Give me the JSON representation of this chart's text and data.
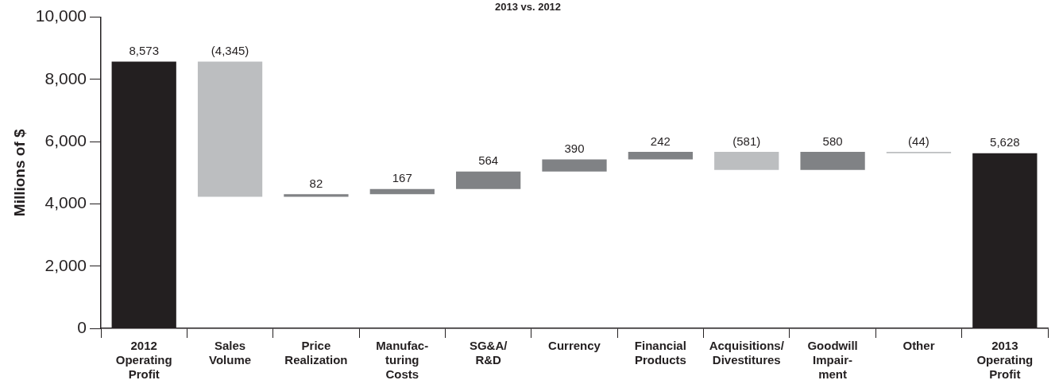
{
  "chart_data": {
    "type": "bar",
    "title": "2013 vs. 2012",
    "ylabel": "Millions of $",
    "categories": [
      "2012\nOperating\nProfit",
      "Sales\nVolume",
      "Price\nRealization",
      "Manufac-\nturing\nCosts",
      "SG&A/\nR&D",
      "Currency",
      "Financial\nProducts",
      "Acquisitions/\nDivestitures",
      "Goodwill\nImpair-\nment",
      "Other",
      "2013\nOperating\nProfit"
    ],
    "values": [
      8573,
      -4345,
      82,
      167,
      564,
      390,
      242,
      -581,
      580,
      -44,
      5628
    ],
    "base": [
      0,
      8573,
      4228,
      4310,
      4477,
      5041,
      5431,
      5673,
      5092,
      5672,
      0
    ],
    "colors": [
      "#231f20",
      "#bcbec0",
      "#808285",
      "#808285",
      "#808285",
      "#808285",
      "#808285",
      "#bcbec0",
      "#808285",
      "#bcbec0",
      "#231f20"
    ],
    "value_labels": [
      "8,573",
      "(4,345)",
      "82",
      "167",
      "564",
      "390",
      "242",
      "(581)",
      "580",
      "(44)",
      "5,628"
    ],
    "ylim": [
      0,
      10000
    ],
    "yticks": [
      {
        "value": 0,
        "label": "0"
      },
      {
        "value": 2000,
        "label": "2,000"
      },
      {
        "value": 4000,
        "label": "4,000"
      },
      {
        "value": 6000,
        "label": "6,000"
      },
      {
        "value": 8000,
        "label": "8,000"
      },
      {
        "value": 10000,
        "label": "10,000"
      }
    ],
    "grid": false,
    "legend": false
  }
}
